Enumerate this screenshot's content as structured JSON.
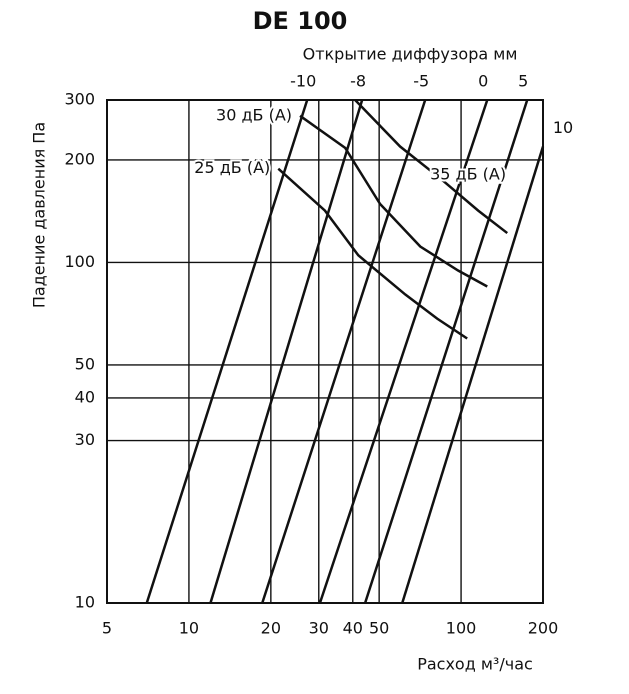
{
  "chart_data": {
    "type": "line",
    "title": "DE 100",
    "top_axis_label": "Открытие диффузора мм",
    "y_label": "Падение давления Па",
    "x_label": "Расход м³/час",
    "xlog": true,
    "ylog": true,
    "grid": true,
    "color": "#111111",
    "xlim": [
      5,
      200
    ],
    "xticks": [
      5,
      10,
      20,
      30,
      40,
      50,
      100,
      200
    ],
    "ylim": [
      10,
      300
    ],
    "yticks": [
      10,
      30,
      40,
      50,
      100,
      200,
      300
    ],
    "series": [
      {
        "name": "-10",
        "x": [
          7.0,
          27.2
        ],
        "values": [
          10,
          300
        ]
      },
      {
        "name": "-8",
        "x": [
          12.0,
          43.3
        ],
        "values": [
          10,
          300
        ]
      },
      {
        "name": "-5",
        "x": [
          18.6,
          73.8
        ],
        "values": [
          10,
          300
        ]
      },
      {
        "name": "0",
        "x": [
          30.3,
          124.8
        ],
        "values": [
          10,
          300
        ]
      },
      {
        "name": "5",
        "x": [
          44.4,
          175
        ],
        "values": [
          10,
          300
        ]
      },
      {
        "name": "10",
        "x": [
          60.8,
          200
        ],
        "values": [
          10,
          219
        ]
      }
    ],
    "noise_curves": [
      {
        "name": "25 дБ (A)",
        "x": [
          21.3,
          31.6,
          41.9,
          62.4,
          81.7,
          105.3
        ],
        "values": [
          188.5,
          142,
          105,
          80.5,
          68.4,
          59.8
        ]
      },
      {
        "name": "30 дБ (A)",
        "x": [
          25.6,
          37.5,
          50.4,
          70.8,
          97.5,
          124.8
        ],
        "values": [
          269.6,
          217,
          148.5,
          111.4,
          94.7,
          85
        ]
      },
      {
        "name": "35 дБ (A)",
        "x": [
          40.8,
          59.7,
          83.8,
          115.6,
          147.8
        ],
        "values": [
          300,
          219,
          176.7,
          142,
          122
        ]
      }
    ]
  }
}
